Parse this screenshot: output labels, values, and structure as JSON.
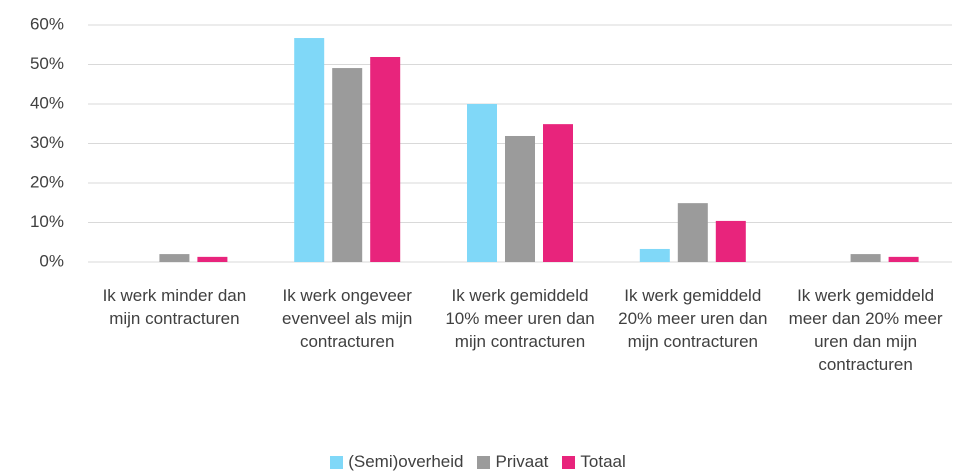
{
  "chart_data": {
    "type": "bar",
    "categories": [
      "Ik werk minder dan mijn contracturen",
      "Ik werk ongeveer evenveel als mijn contracturen",
      "Ik werk gemiddeld 10% meer uren dan mijn contracturen",
      "Ik werk gemiddeld 20% meer uren dan mijn contracturen",
      "Ik werk gemiddeld meer dan 20% meer uren dan mijn contracturen"
    ],
    "series": [
      {
        "name": "(Semi)overheid",
        "color": "#80d8f8",
        "values": [
          0,
          56.7,
          40,
          3.3,
          0
        ]
      },
      {
        "name": "Privaat",
        "color": "#9b9b9b",
        "values": [
          2,
          49.1,
          31.9,
          14.9,
          2
        ]
      },
      {
        "name": "Totaal",
        "color": "#e8247c",
        "values": [
          1.3,
          51.9,
          34.9,
          10.4,
          1.3
        ]
      }
    ],
    "ylim": [
      0,
      60
    ],
    "yticks": [
      {
        "value": 0,
        "label": "0%"
      },
      {
        "value": 10,
        "label": "10%"
      },
      {
        "value": 20,
        "label": "20%"
      },
      {
        "value": 30,
        "label": "30%"
      },
      {
        "value": 40,
        "label": "40%"
      },
      {
        "value": 50,
        "label": "50%"
      },
      {
        "value": 60,
        "label": "60%"
      }
    ],
    "grid": true,
    "legend": "bottom"
  }
}
